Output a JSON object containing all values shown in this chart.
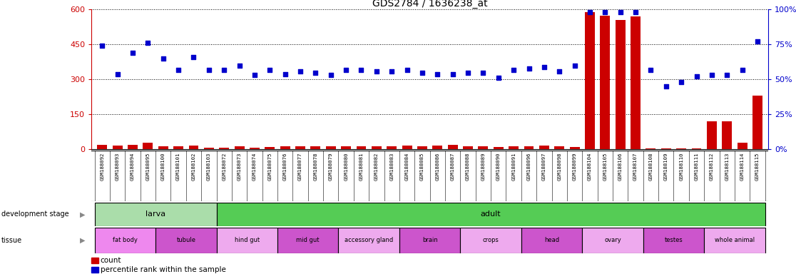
{
  "title": "GDS2784 / 1636238_at",
  "samples": [
    "GSM188092",
    "GSM188093",
    "GSM188094",
    "GSM188095",
    "GSM188100",
    "GSM188101",
    "GSM188102",
    "GSM188103",
    "GSM188072",
    "GSM188073",
    "GSM188074",
    "GSM188075",
    "GSM188076",
    "GSM188077",
    "GSM188078",
    "GSM188079",
    "GSM188080",
    "GSM188081",
    "GSM188082",
    "GSM188083",
    "GSM188084",
    "GSM188085",
    "GSM188086",
    "GSM188087",
    "GSM188088",
    "GSM188089",
    "GSM188090",
    "GSM188091",
    "GSM188096",
    "GSM188097",
    "GSM188098",
    "GSM188099",
    "GSM188104",
    "GSM188105",
    "GSM188106",
    "GSM188107",
    "GSM188108",
    "GSM188109",
    "GSM188110",
    "GSM188111",
    "GSM188112",
    "GSM188113",
    "GSM188114",
    "GSM188115"
  ],
  "count": [
    20,
    16,
    20,
    28,
    12,
    13,
    15,
    8,
    8,
    13,
    8,
    9,
    14,
    12,
    12,
    14,
    12,
    12,
    12,
    12,
    15,
    12,
    15,
    18,
    12,
    12,
    9,
    14,
    12,
    15,
    12,
    10,
    590,
    575,
    555,
    570,
    3,
    3,
    3,
    3,
    120,
    120,
    28,
    230
  ],
  "percentile_pct": [
    74,
    54,
    69,
    76,
    65,
    57,
    66,
    57,
    57,
    60,
    53,
    57,
    54,
    56,
    55,
    53,
    57,
    57,
    56,
    56,
    57,
    55,
    54,
    54,
    55,
    55,
    51,
    57,
    58,
    59,
    56,
    60,
    98,
    98,
    98,
    98,
    57,
    45,
    48,
    52,
    53,
    53,
    57,
    77
  ],
  "left_ylim": [
    0,
    600
  ],
  "left_yticks": [
    0,
    150,
    300,
    450,
    600
  ],
  "right_ylim": [
    0,
    100
  ],
  "right_yticks": [
    0,
    25,
    50,
    75,
    100
  ],
  "bar_color": "#cc0000",
  "dot_color": "#0000cc",
  "development_stages": [
    {
      "label": "larva",
      "start": 0,
      "end": 8,
      "color": "#aaddaa"
    },
    {
      "label": "adult",
      "start": 8,
      "end": 44,
      "color": "#55cc55"
    }
  ],
  "tissues": [
    {
      "label": "fat body",
      "start": 0,
      "end": 4,
      "color": "#ee88ee"
    },
    {
      "label": "tubule",
      "start": 4,
      "end": 8,
      "color": "#cc55cc"
    },
    {
      "label": "hind gut",
      "start": 8,
      "end": 12,
      "color": "#eeaaee"
    },
    {
      "label": "mid gut",
      "start": 12,
      "end": 16,
      "color": "#cc55cc"
    },
    {
      "label": "accessory gland",
      "start": 16,
      "end": 20,
      "color": "#eeaaee"
    },
    {
      "label": "brain",
      "start": 20,
      "end": 24,
      "color": "#cc55cc"
    },
    {
      "label": "crops",
      "start": 24,
      "end": 28,
      "color": "#eeaaee"
    },
    {
      "label": "head",
      "start": 28,
      "end": 32,
      "color": "#cc55cc"
    },
    {
      "label": "ovary",
      "start": 32,
      "end": 36,
      "color": "#eeaaee"
    },
    {
      "label": "testes",
      "start": 36,
      "end": 40,
      "color": "#cc55cc"
    },
    {
      "label": "whole animal",
      "start": 40,
      "end": 44,
      "color": "#eeaaee"
    }
  ],
  "bg_color": "#ffffff",
  "tick_label_color": "#cc0000",
  "right_tick_color": "#0000cc",
  "grid_color": "#000000",
  "sample_bg_color": "#cccccc"
}
